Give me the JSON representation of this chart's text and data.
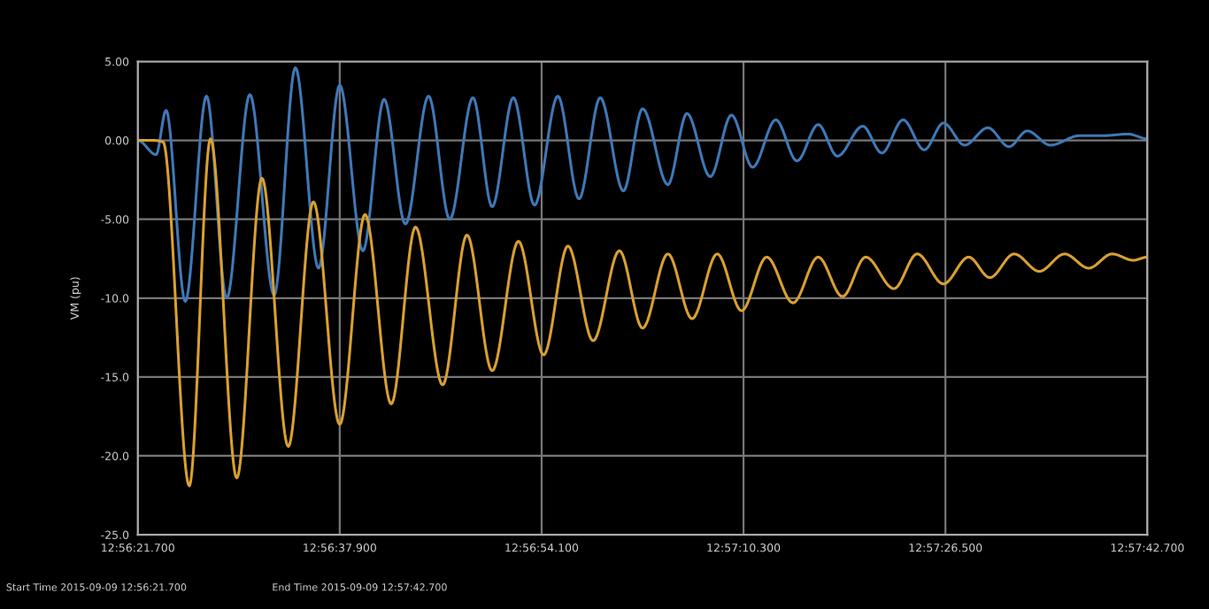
{
  "chart_data": {
    "type": "line",
    "ylabel": "VM (pu)",
    "xlim": [
      "2015-09-09T12:56:21.700",
      "2015-09-09T12:57:42.700"
    ],
    "xticks": [
      {
        "value": "2015-09-09T12:56:21.700",
        "label": "12:56:21.700"
      },
      {
        "value": "2015-09-09T12:56:37.900",
        "label": "12:56:37.900"
      },
      {
        "value": "2015-09-09T12:56:54.100",
        "label": "12:56:54.100"
      },
      {
        "value": "2015-09-09T12:57:10.300",
        "label": "12:57:10.300"
      },
      {
        "value": "2015-09-09T12:57:26.500",
        "label": "12:57:26.500"
      },
      {
        "value": "2015-09-09T12:57:42.700",
        "label": "12:57:42.700"
      }
    ],
    "ylim": [
      -25,
      5
    ],
    "yticks": [
      {
        "value": 5,
        "label": "5.00"
      },
      {
        "value": 0,
        "label": "0.00"
      },
      {
        "value": -5,
        "label": "-5.00"
      },
      {
        "value": -10,
        "label": "-10.0"
      },
      {
        "value": -15,
        "label": "-15.0"
      },
      {
        "value": -20,
        "label": "-20.0"
      },
      {
        "value": -25,
        "label": "-25.0"
      }
    ],
    "grid": true,
    "legend": false,
    "marker": "none",
    "line_style": "solid",
    "annotations": [
      "Start Time 2015-09-09 12:56:21.700",
      "End Time 2015-09-09 12:57:42.700"
    ],
    "series": [
      {
        "color": "#3f78b8",
        "x": [
          "2015-09-09T12:56:21.70",
          "2015-09-09T12:56:23.16",
          "2015-09-09T12:56:23.97",
          "2015-09-09T12:56:25.51",
          "2015-09-09T12:56:27.21",
          "2015-09-09T12:56:28.83",
          "2015-09-09T12:56:30.69",
          "2015-09-09T12:56:32.64",
          "2015-09-09T12:56:34.34",
          "2015-09-09T12:56:36.20",
          "2015-09-09T12:56:37.90",
          "2015-09-09T12:56:39.76",
          "2015-09-09T12:56:41.46",
          "2015-09-09T12:56:43.17",
          "2015-09-09T12:56:45.03",
          "2015-09-09T12:56:46.73",
          "2015-09-09T12:56:48.59",
          "2015-09-09T12:56:50.13",
          "2015-09-09T12:56:51.83",
          "2015-09-09T12:56:53.53",
          "2015-09-09T12:56:55.40",
          "2015-09-09T12:56:57.10",
          "2015-09-09T12:56:58.80",
          "2015-09-09T12:57:00.66",
          "2015-09-09T12:57:02.20",
          "2015-09-09T12:57:04.23",
          "2015-09-09T12:57:05.76",
          "2015-09-09T12:57:07.63",
          "2015-09-09T12:57:09.33",
          "2015-09-09T12:57:11.03",
          "2015-09-09T12:57:12.89",
          "2015-09-09T12:57:14.59",
          "2015-09-09T12:57:16.29",
          "2015-09-09T12:57:17.83",
          "2015-09-09T12:57:19.86",
          "2015-09-09T12:57:21.40",
          "2015-09-09T12:57:23.10",
          "2015-09-09T12:57:24.80",
          "2015-09-09T12:57:26.34",
          "2015-09-09T12:57:28.04",
          "2015-09-09T12:57:29.90",
          "2015-09-09T12:57:31.60",
          "2015-09-09T12:57:33.06",
          "2015-09-09T12:57:34.92",
          "2015-09-09T12:57:37.27",
          "2015-09-09T12:57:39.14",
          "2015-09-09T12:57:41.16",
          "2015-09-09T12:57:42.70"
        ],
        "values": [
          0,
          -0.9,
          1.9,
          -10.2,
          2.8,
          -10,
          2.9,
          -9.8,
          4.6,
          -8.1,
          3.5,
          -7.0,
          2.6,
          -5.3,
          2.8,
          -5,
          2.7,
          -4.2,
          2.7,
          -4.1,
          2.8,
          -3.7,
          2.7,
          -3.2,
          2.0,
          -2.8,
          1.7,
          -2.3,
          1.6,
          -1.7,
          1.3,
          -1.3,
          1.0,
          -1.0,
          0.9,
          -0.8,
          1.3,
          -0.6,
          1.1,
          -0.3,
          0.8,
          -0.4,
          0.6,
          -0.3,
          0.3,
          0.3,
          0.4,
          0.1
        ]
      },
      {
        "color": "#d9a030",
        "x": [
          "2015-09-09T12:56:21.70",
          "2015-09-09T12:56:22.92",
          "2015-09-09T12:56:23.73",
          "2015-09-09T12:56:25.83",
          "2015-09-09T12:56:27.53",
          "2015-09-09T12:56:29.64",
          "2015-09-09T12:56:31.66",
          "2015-09-09T12:56:33.77",
          "2015-09-09T12:56:35.79",
          "2015-09-09T12:56:37.90",
          "2015-09-09T12:56:39.93",
          "2015-09-09T12:56:42.03",
          "2015-09-09T12:56:43.98",
          "2015-09-09T12:56:46.16",
          "2015-09-09T12:56:48.11",
          "2015-09-09T12:56:50.13",
          "2015-09-09T12:56:52.24",
          "2015-09-09T12:56:54.26",
          "2015-09-09T12:56:56.21",
          "2015-09-09T12:56:58.23",
          "2015-09-09T12:57:00.34",
          "2015-09-09T12:57:02.20",
          "2015-09-09T12:57:04.23",
          "2015-09-09T12:57:06.17",
          "2015-09-09T12:57:08.19",
          "2015-09-09T12:57:10.14",
          "2015-09-09T12:57:12.16",
          "2015-09-09T12:57:14.27",
          "2015-09-09T12:57:16.29",
          "2015-09-09T12:57:18.24",
          "2015-09-09T12:57:20.10",
          "2015-09-09T12:57:22.37",
          "2015-09-09T12:57:24.23",
          "2015-09-09T12:57:26.34",
          "2015-09-09T12:57:28.36",
          "2015-09-09T12:57:30.06",
          "2015-09-09T12:57:32.01",
          "2015-09-09T12:57:34.03",
          "2015-09-09T12:57:36.06",
          "2015-09-09T12:57:38.00",
          "2015-09-09T12:57:39.87",
          "2015-09-09T12:57:41.57",
          "2015-09-09T12:57:42.70"
        ],
        "values": [
          0,
          0,
          -0.1,
          -21.9,
          0.1,
          -21.4,
          -2.4,
          -19.4,
          -3.9,
          -18,
          -4.7,
          -16.7,
          -5.5,
          -15.5,
          -6,
          -14.6,
          -6.4,
          -13.6,
          -6.7,
          -12.7,
          -7,
          -11.9,
          -7.2,
          -11.3,
          -7.2,
          -10.8,
          -7.4,
          -10.3,
          -7.4,
          -9.9,
          -7.4,
          -9.4,
          -7.2,
          -9.1,
          -7.4,
          -8.7,
          -7.2,
          -8.3,
          -7.2,
          -8.1,
          -7.2,
          -7.6,
          -7.4
        ]
      }
    ]
  }
}
